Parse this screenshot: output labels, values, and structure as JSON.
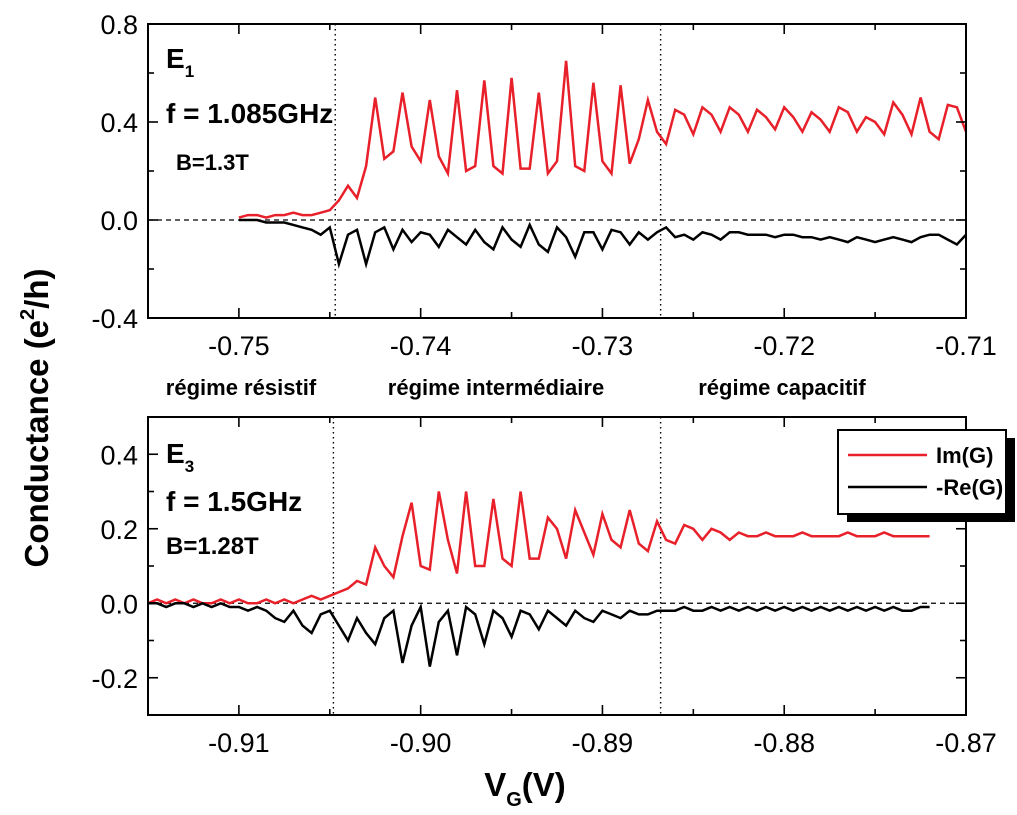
{
  "ylabel": "Conductance (e",
  "ylabel_sup": "2",
  "ylabel_tail": "/h)",
  "xlabel": "V",
  "xlabel_sub": "G",
  "xlabel_tail": "(V)",
  "regimes": [
    "régime résistif",
    "régime intermédiaire",
    "régime capacitif"
  ],
  "legend": {
    "im": "Im(G)",
    "re": "-Re(G)"
  },
  "colors": {
    "im": "#e8202a",
    "re": "#000000"
  },
  "chart_data": [
    {
      "type": "line",
      "panel_label": "E",
      "panel_label_sub": "1",
      "freq_label": "f = 1.085GHz",
      "field_label": "B=1.3T",
      "xlim": [
        -0.755,
        -0.71
      ],
      "ylim": [
        -0.4,
        0.8
      ],
      "xticks": [
        -0.75,
        -0.74,
        -0.73,
        -0.72,
        -0.71
      ],
      "yticks": [
        -0.4,
        0.0,
        0.4,
        0.8
      ],
      "xtick_labels": [
        "-0.75",
        "-0.74",
        "-0.73",
        "-0.72",
        "-0.71"
      ],
      "ytick_labels": [
        "-0.4",
        "0.0",
        "0.4",
        "0.8"
      ],
      "dotted_x": [
        -0.7447,
        -0.7268
      ],
      "dashed_y": 0.0,
      "series": [
        {
          "key": "im",
          "x": [
            -0.75,
            -0.7495,
            -0.749,
            -0.7485,
            -0.748,
            -0.7475,
            -0.747,
            -0.7465,
            -0.746,
            -0.7455,
            -0.745,
            -0.7445,
            -0.744,
            -0.7435,
            -0.743,
            -0.7425,
            -0.742,
            -0.7415,
            -0.741,
            -0.7405,
            -0.74,
            -0.7395,
            -0.739,
            -0.7385,
            -0.738,
            -0.7375,
            -0.737,
            -0.7365,
            -0.736,
            -0.7355,
            -0.735,
            -0.7345,
            -0.734,
            -0.7335,
            -0.733,
            -0.7325,
            -0.732,
            -0.7315,
            -0.731,
            -0.7305,
            -0.73,
            -0.7295,
            -0.729,
            -0.7285,
            -0.728,
            -0.7275,
            -0.727,
            -0.7265,
            -0.726,
            -0.7255,
            -0.725,
            -0.7245,
            -0.724,
            -0.7235,
            -0.723,
            -0.7225,
            -0.722,
            -0.7215,
            -0.721,
            -0.7205,
            -0.72,
            -0.7195,
            -0.719,
            -0.7185,
            -0.718,
            -0.7175,
            -0.717,
            -0.7165,
            -0.716,
            -0.7155,
            -0.715,
            -0.7145,
            -0.714,
            -0.7135,
            -0.713,
            -0.7125,
            -0.712,
            -0.7115,
            -0.711,
            -0.7105,
            -0.71
          ],
          "y": [
            0.01,
            0.02,
            0.02,
            0.01,
            0.02,
            0.02,
            0.03,
            0.02,
            0.02,
            0.03,
            0.04,
            0.08,
            0.14,
            0.09,
            0.22,
            0.5,
            0.25,
            0.28,
            0.52,
            0.3,
            0.24,
            0.49,
            0.26,
            0.19,
            0.53,
            0.2,
            0.22,
            0.57,
            0.22,
            0.19,
            0.58,
            0.21,
            0.21,
            0.52,
            0.19,
            0.24,
            0.65,
            0.22,
            0.2,
            0.56,
            0.24,
            0.19,
            0.55,
            0.23,
            0.33,
            0.49,
            0.36,
            0.31,
            0.45,
            0.43,
            0.35,
            0.46,
            0.43,
            0.36,
            0.46,
            0.43,
            0.36,
            0.45,
            0.42,
            0.37,
            0.46,
            0.42,
            0.36,
            0.44,
            0.41,
            0.36,
            0.46,
            0.44,
            0.36,
            0.42,
            0.4,
            0.35,
            0.48,
            0.43,
            0.35,
            0.5,
            0.36,
            0.33,
            0.47,
            0.46,
            0.36
          ]
        },
        {
          "key": "re",
          "x": [
            -0.75,
            -0.7495,
            -0.749,
            -0.7485,
            -0.748,
            -0.7475,
            -0.747,
            -0.7465,
            -0.746,
            -0.7455,
            -0.745,
            -0.7445,
            -0.744,
            -0.7435,
            -0.743,
            -0.7425,
            -0.742,
            -0.7415,
            -0.741,
            -0.7405,
            -0.74,
            -0.7395,
            -0.739,
            -0.7385,
            -0.738,
            -0.7375,
            -0.737,
            -0.7365,
            -0.736,
            -0.7355,
            -0.735,
            -0.7345,
            -0.734,
            -0.7335,
            -0.733,
            -0.7325,
            -0.732,
            -0.7315,
            -0.731,
            -0.7305,
            -0.73,
            -0.7295,
            -0.729,
            -0.7285,
            -0.728,
            -0.7275,
            -0.727,
            -0.7265,
            -0.726,
            -0.7255,
            -0.725,
            -0.7245,
            -0.724,
            -0.7235,
            -0.723,
            -0.7225,
            -0.722,
            -0.7215,
            -0.721,
            -0.7205,
            -0.72,
            -0.7195,
            -0.719,
            -0.7185,
            -0.718,
            -0.7175,
            -0.717,
            -0.7165,
            -0.716,
            -0.7155,
            -0.715,
            -0.7145,
            -0.714,
            -0.7135,
            -0.713,
            -0.7125,
            -0.712,
            -0.7115,
            -0.711,
            -0.7105,
            -0.71
          ],
          "y": [
            0.0,
            0.0,
            0.0,
            -0.01,
            -0.01,
            -0.01,
            -0.02,
            -0.03,
            -0.04,
            -0.06,
            -0.03,
            -0.18,
            -0.06,
            -0.04,
            -0.18,
            -0.05,
            -0.03,
            -0.12,
            -0.04,
            -0.09,
            -0.05,
            -0.06,
            -0.11,
            -0.04,
            -0.07,
            -0.1,
            -0.04,
            -0.09,
            -0.12,
            -0.03,
            -0.08,
            -0.11,
            -0.02,
            -0.1,
            -0.13,
            -0.03,
            -0.07,
            -0.15,
            -0.05,
            -0.05,
            -0.12,
            -0.04,
            -0.05,
            -0.1,
            -0.05,
            -0.08,
            -0.05,
            -0.03,
            -0.07,
            -0.06,
            -0.08,
            -0.05,
            -0.06,
            -0.08,
            -0.05,
            -0.05,
            -0.06,
            -0.06,
            -0.06,
            -0.07,
            -0.06,
            -0.06,
            -0.07,
            -0.07,
            -0.08,
            -0.07,
            -0.08,
            -0.09,
            -0.07,
            -0.08,
            -0.09,
            -0.08,
            -0.07,
            -0.08,
            -0.09,
            -0.07,
            -0.06,
            -0.06,
            -0.08,
            -0.1,
            -0.06
          ]
        }
      ]
    },
    {
      "type": "line",
      "panel_label": "E",
      "panel_label_sub": "3",
      "freq_label": "f = 1.5GHz",
      "field_label": "B=1.28T",
      "xlim": [
        -0.915,
        -0.87
      ],
      "ylim": [
        -0.3,
        0.5
      ],
      "xticks": [
        -0.91,
        -0.9,
        -0.89,
        -0.88,
        -0.87
      ],
      "yticks": [
        -0.2,
        0.0,
        0.2,
        0.4
      ],
      "xtick_labels": [
        "-0.91",
        "-0.90",
        "-0.89",
        "-0.88",
        "-0.87"
      ],
      "ytick_labels": [
        "-0.2",
        "0.0",
        "0.2",
        "0.4"
      ],
      "dotted_x": [
        -0.9048,
        -0.8868
      ],
      "dashed_y": 0.0,
      "series": [
        {
          "key": "im",
          "x": [
            -0.915,
            -0.9145,
            -0.914,
            -0.9135,
            -0.913,
            -0.9125,
            -0.912,
            -0.9115,
            -0.911,
            -0.9105,
            -0.91,
            -0.9095,
            -0.909,
            -0.9085,
            -0.908,
            -0.9075,
            -0.907,
            -0.9065,
            -0.906,
            -0.9055,
            -0.905,
            -0.9045,
            -0.904,
            -0.9035,
            -0.903,
            -0.9025,
            -0.902,
            -0.9015,
            -0.901,
            -0.9005,
            -0.9,
            -0.8995,
            -0.899,
            -0.8985,
            -0.898,
            -0.8975,
            -0.897,
            -0.8965,
            -0.896,
            -0.8955,
            -0.895,
            -0.8945,
            -0.894,
            -0.8935,
            -0.893,
            -0.8925,
            -0.892,
            -0.8915,
            -0.891,
            -0.8905,
            -0.89,
            -0.8895,
            -0.889,
            -0.8885,
            -0.888,
            -0.8875,
            -0.887,
            -0.8865,
            -0.886,
            -0.8855,
            -0.885,
            -0.8845,
            -0.884,
            -0.8835,
            -0.883,
            -0.8825,
            -0.882,
            -0.8815,
            -0.881,
            -0.8805,
            -0.88,
            -0.8795,
            -0.879,
            -0.8785,
            -0.878,
            -0.8775,
            -0.877,
            -0.8765,
            -0.876,
            -0.8755,
            -0.875,
            -0.8745,
            -0.874,
            -0.8735,
            -0.873,
            -0.8725,
            -0.872
          ],
          "y": [
            0.0,
            0.01,
            0.0,
            0.01,
            0.0,
            0.01,
            0.0,
            0.0,
            0.01,
            0.0,
            0.01,
            0.0,
            0.0,
            0.01,
            0.0,
            0.01,
            0.0,
            0.01,
            0.02,
            0.01,
            0.02,
            0.03,
            0.04,
            0.06,
            0.05,
            0.15,
            0.1,
            0.07,
            0.18,
            0.27,
            0.1,
            0.09,
            0.3,
            0.17,
            0.08,
            0.3,
            0.1,
            0.1,
            0.28,
            0.12,
            0.1,
            0.3,
            0.12,
            0.12,
            0.23,
            0.2,
            0.12,
            0.25,
            0.19,
            0.13,
            0.24,
            0.17,
            0.15,
            0.25,
            0.16,
            0.14,
            0.22,
            0.17,
            0.16,
            0.21,
            0.2,
            0.17,
            0.2,
            0.19,
            0.17,
            0.19,
            0.18,
            0.18,
            0.19,
            0.18,
            0.18,
            0.18,
            0.19,
            0.18,
            0.18,
            0.18,
            0.18,
            0.19,
            0.18,
            0.18,
            0.18,
            0.19,
            0.18,
            0.18,
            0.18,
            0.18,
            0.18
          ]
        },
        {
          "key": "re",
          "x": [
            -0.915,
            -0.9145,
            -0.914,
            -0.9135,
            -0.913,
            -0.9125,
            -0.912,
            -0.9115,
            -0.911,
            -0.9105,
            -0.91,
            -0.9095,
            -0.909,
            -0.9085,
            -0.908,
            -0.9075,
            -0.907,
            -0.9065,
            -0.906,
            -0.9055,
            -0.905,
            -0.9045,
            -0.904,
            -0.9035,
            -0.903,
            -0.9025,
            -0.902,
            -0.9015,
            -0.901,
            -0.9005,
            -0.9,
            -0.8995,
            -0.899,
            -0.8985,
            -0.898,
            -0.8975,
            -0.897,
            -0.8965,
            -0.896,
            -0.8955,
            -0.895,
            -0.8945,
            -0.894,
            -0.8935,
            -0.893,
            -0.8925,
            -0.892,
            -0.8915,
            -0.891,
            -0.8905,
            -0.89,
            -0.8895,
            -0.889,
            -0.8885,
            -0.888,
            -0.8875,
            -0.887,
            -0.8865,
            -0.886,
            -0.8855,
            -0.885,
            -0.8845,
            -0.884,
            -0.8835,
            -0.883,
            -0.8825,
            -0.882,
            -0.8815,
            -0.881,
            -0.8805,
            -0.88,
            -0.8795,
            -0.879,
            -0.8785,
            -0.878,
            -0.8775,
            -0.877,
            -0.8765,
            -0.876,
            -0.8755,
            -0.875,
            -0.8745,
            -0.874,
            -0.8735,
            -0.873,
            -0.8725,
            -0.872
          ],
          "y": [
            0.0,
            0.0,
            -0.01,
            0.0,
            0.0,
            -0.01,
            0.0,
            -0.01,
            0.0,
            -0.01,
            -0.01,
            -0.02,
            -0.01,
            -0.02,
            -0.04,
            -0.05,
            -0.02,
            -0.06,
            -0.08,
            -0.03,
            -0.02,
            -0.06,
            -0.1,
            -0.04,
            -0.08,
            -0.11,
            -0.04,
            -0.02,
            -0.16,
            -0.06,
            -0.01,
            -0.17,
            -0.05,
            -0.02,
            -0.14,
            -0.01,
            -0.03,
            -0.11,
            -0.02,
            -0.04,
            -0.09,
            -0.02,
            -0.03,
            -0.07,
            -0.02,
            -0.04,
            -0.06,
            -0.02,
            -0.04,
            -0.05,
            -0.02,
            -0.03,
            -0.04,
            -0.02,
            -0.03,
            -0.03,
            -0.02,
            -0.02,
            -0.02,
            -0.01,
            -0.02,
            -0.02,
            -0.01,
            -0.02,
            -0.01,
            -0.02,
            -0.01,
            -0.02,
            -0.01,
            -0.02,
            -0.01,
            -0.02,
            -0.01,
            -0.02,
            -0.01,
            -0.02,
            -0.01,
            -0.02,
            -0.01,
            -0.02,
            -0.01,
            -0.02,
            -0.01,
            -0.02,
            -0.02,
            -0.01,
            -0.01
          ]
        }
      ]
    }
  ]
}
